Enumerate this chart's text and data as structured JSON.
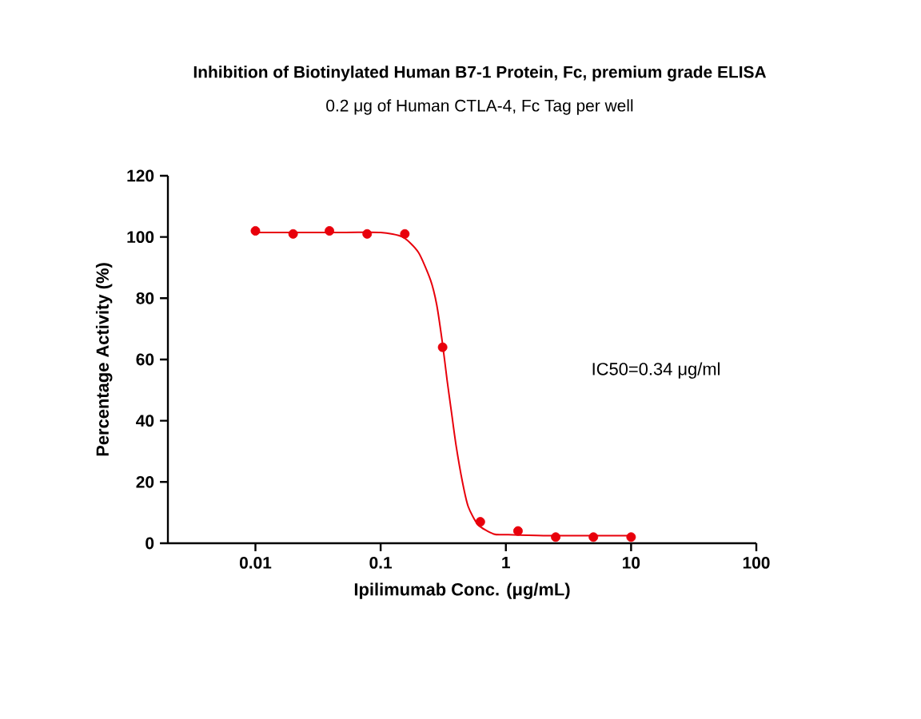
{
  "chart_data": {
    "type": "scatter",
    "title": "Inhibition of Biotinylated Human B7-1 Protein, Fc, premium grade ELISA",
    "subtitle": "0.2 μg of Human CTLA-4, Fc Tag per well",
    "xlabel": "Ipilimumab Conc. (μg/mL)",
    "ylabel": "Percentage Activity (%)",
    "log": "x",
    "xlim": [
      0.002,
      100
    ],
    "xticks": [
      0.01,
      0.1,
      1,
      10,
      100
    ],
    "ylim": [
      0,
      120
    ],
    "yticks": [
      0,
      20,
      40,
      60,
      80,
      100,
      120
    ],
    "annotations": [
      "IC50=0.34 μg/ml"
    ],
    "grid": false,
    "marker": "circle",
    "series": [
      {
        "color": "#e8000b",
        "x": [
          0.01,
          0.02,
          0.039,
          0.078,
          0.156,
          0.3125,
          0.625,
          1.25,
          2.5,
          5,
          10
        ],
        "values": [
          102,
          101,
          102,
          101,
          101,
          64,
          7,
          4,
          2,
          2,
          2
        ]
      },
      {
        "type": "line",
        "marker": "none",
        "line_style": "solid",
        "color": "#e8000b",
        "x": [
          0.01,
          0.05,
          0.1,
          0.15,
          0.2,
          0.25,
          0.28,
          0.31,
          0.34,
          0.37,
          0.4,
          0.45,
          0.5,
          0.6,
          0.8,
          1,
          2,
          10
        ],
        "values": [
          101.5,
          101.5,
          101.5,
          100,
          95,
          86,
          78,
          66,
          53,
          42,
          32,
          20,
          12,
          6,
          3,
          2.8,
          2.5,
          2.5
        ]
      }
    ]
  }
}
